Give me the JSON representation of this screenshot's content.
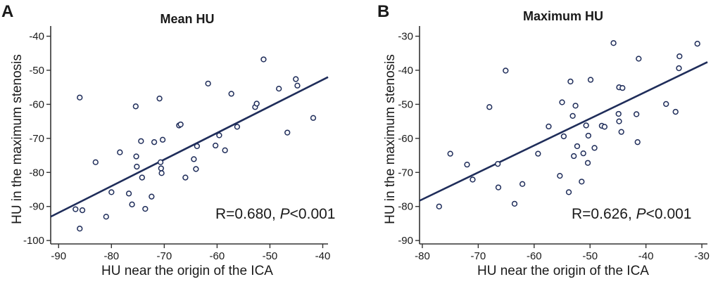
{
  "figure": {
    "colors": {
      "axis": "#333333",
      "marker": "#1f2d5a",
      "fit": "#1f2d5a",
      "text": "#1a1a1a"
    }
  },
  "chart_data": [
    {
      "type": "scatter",
      "panel_letter": "A",
      "title": "Mean HU",
      "xlabel": "HU near the origin of the ICA",
      "ylabel": "HU in the maximum stenosis",
      "xlim": [
        -91.5,
        -39
      ],
      "ylim": [
        -101,
        -37
      ],
      "x_ticks": [
        -90,
        -80,
        -70,
        -60,
        -50,
        -40
      ],
      "y_ticks": [
        -100,
        -90,
        -80,
        -70,
        -60,
        -50,
        -40
      ],
      "fit_line": {
        "x": [
          -91.5,
          -39
        ],
        "y": [
          -93,
          -52
        ]
      },
      "annotation": {
        "prefix": "R=0.680, ",
        "p_symbol": "P",
        "suffix": "<0.001"
      },
      "points": [
        {
          "x": -86,
          "y": -58
        },
        {
          "x": -86,
          "y": -96.5
        },
        {
          "x": -86.8,
          "y": -90.8
        },
        {
          "x": -85.5,
          "y": -91.1
        },
        {
          "x": -83,
          "y": -77
        },
        {
          "x": -81,
          "y": -93
        },
        {
          "x": -80,
          "y": -85.8
        },
        {
          "x": -78.4,
          "y": -74.1
        },
        {
          "x": -76.7,
          "y": -86.2
        },
        {
          "x": -76.1,
          "y": -89.4
        },
        {
          "x": -75.4,
          "y": -60.6
        },
        {
          "x": -75.3,
          "y": -75.3
        },
        {
          "x": -75.2,
          "y": -78.3
        },
        {
          "x": -74.4,
          "y": -70.8
        },
        {
          "x": -74.2,
          "y": -81.5
        },
        {
          "x": -73.6,
          "y": -90.7
        },
        {
          "x": -72.4,
          "y": -87.1
        },
        {
          "x": -71.9,
          "y": -71.1
        },
        {
          "x": -70.9,
          "y": -58.3
        },
        {
          "x": -70.7,
          "y": -77
        },
        {
          "x": -70.6,
          "y": -78.8
        },
        {
          "x": -70.5,
          "y": -80.2
        },
        {
          "x": -70.3,
          "y": -70.4
        },
        {
          "x": -67.2,
          "y": -66.2
        },
        {
          "x": -66.9,
          "y": -65.9
        },
        {
          "x": -66,
          "y": -81.5
        },
        {
          "x": -64.4,
          "y": -76.1
        },
        {
          "x": -64,
          "y": -79
        },
        {
          "x": -63.8,
          "y": -72.3
        },
        {
          "x": -61.7,
          "y": -53.9
        },
        {
          "x": -60.3,
          "y": -72.1
        },
        {
          "x": -59.6,
          "y": -69.1
        },
        {
          "x": -58.5,
          "y": -73.5
        },
        {
          "x": -57.3,
          "y": -56.9
        },
        {
          "x": -56.2,
          "y": -66.6
        },
        {
          "x": -52.8,
          "y": -60.8
        },
        {
          "x": -52.5,
          "y": -59.8
        },
        {
          "x": -51.2,
          "y": -46.8
        },
        {
          "x": -48.3,
          "y": -55.4
        },
        {
          "x": -46.7,
          "y": -68.3
        },
        {
          "x": -45.1,
          "y": -52.6
        },
        {
          "x": -44.8,
          "y": -54.5
        },
        {
          "x": -41.8,
          "y": -64
        }
      ]
    },
    {
      "type": "scatter",
      "panel_letter": "B",
      "title": "Maximum HU",
      "xlabel": "HU near the origin of the ICA",
      "ylabel": "HU in the maximum stenosis",
      "xlim": [
        -80.5,
        -29
      ],
      "ylim": [
        -91,
        -27
      ],
      "x_ticks": [
        -80,
        -70,
        -60,
        -50,
        -40,
        -30
      ],
      "y_ticks": [
        -90,
        -80,
        -70,
        -60,
        -50,
        -40,
        -30
      ],
      "fit_line": {
        "x": [
          -80.5,
          -29
        ],
        "y": [
          -78.3,
          -37.6
        ]
      },
      "annotation": {
        "prefix": "R=0.626, ",
        "p_symbol": "P",
        "suffix": "<0.001"
      },
      "points": [
        {
          "x": -77,
          "y": -80
        },
        {
          "x": -75,
          "y": -64.5
        },
        {
          "x": -72,
          "y": -67.7
        },
        {
          "x": -71,
          "y": -72.1
        },
        {
          "x": -68,
          "y": -50.8
        },
        {
          "x": -66.5,
          "y": -67.5
        },
        {
          "x": -66.4,
          "y": -74.4
        },
        {
          "x": -65.1,
          "y": -40.1
        },
        {
          "x": -63.5,
          "y": -79.2
        },
        {
          "x": -62.1,
          "y": -73.4
        },
        {
          "x": -59.3,
          "y": -64.5
        },
        {
          "x": -57.4,
          "y": -56.5
        },
        {
          "x": -55.4,
          "y": -71
        },
        {
          "x": -55,
          "y": -49.4
        },
        {
          "x": -54.7,
          "y": -59.4
        },
        {
          "x": -53.8,
          "y": -75.8
        },
        {
          "x": -53.5,
          "y": -43.3
        },
        {
          "x": -53.1,
          "y": -53.4
        },
        {
          "x": -52.9,
          "y": -65.2
        },
        {
          "x": -52.6,
          "y": -50.4
        },
        {
          "x": -52.3,
          "y": -62.3
        },
        {
          "x": -51.5,
          "y": -72.7
        },
        {
          "x": -51.2,
          "y": -64.4
        },
        {
          "x": -50.7,
          "y": -56.2
        },
        {
          "x": -50.4,
          "y": -67.2
        },
        {
          "x": -50.3,
          "y": -59.2
        },
        {
          "x": -49.9,
          "y": -42.8
        },
        {
          "x": -49.2,
          "y": -62.8
        },
        {
          "x": -47.9,
          "y": -56.3
        },
        {
          "x": -47.4,
          "y": -56.6
        },
        {
          "x": -45.8,
          "y": -32
        },
        {
          "x": -44.9,
          "y": -52.8
        },
        {
          "x": -44.8,
          "y": -55
        },
        {
          "x": -44.8,
          "y": -45
        },
        {
          "x": -44.4,
          "y": -58.1
        },
        {
          "x": -44.2,
          "y": -45.2
        },
        {
          "x": -41.7,
          "y": -52.9
        },
        {
          "x": -41.5,
          "y": -61.1
        },
        {
          "x": -41.3,
          "y": -36.6
        },
        {
          "x": -36.4,
          "y": -49.9
        },
        {
          "x": -34.7,
          "y": -52.2
        },
        {
          "x": -34.1,
          "y": -39.4
        },
        {
          "x": -34,
          "y": -35.9
        },
        {
          "x": -30.8,
          "y": -32.2
        }
      ]
    }
  ]
}
